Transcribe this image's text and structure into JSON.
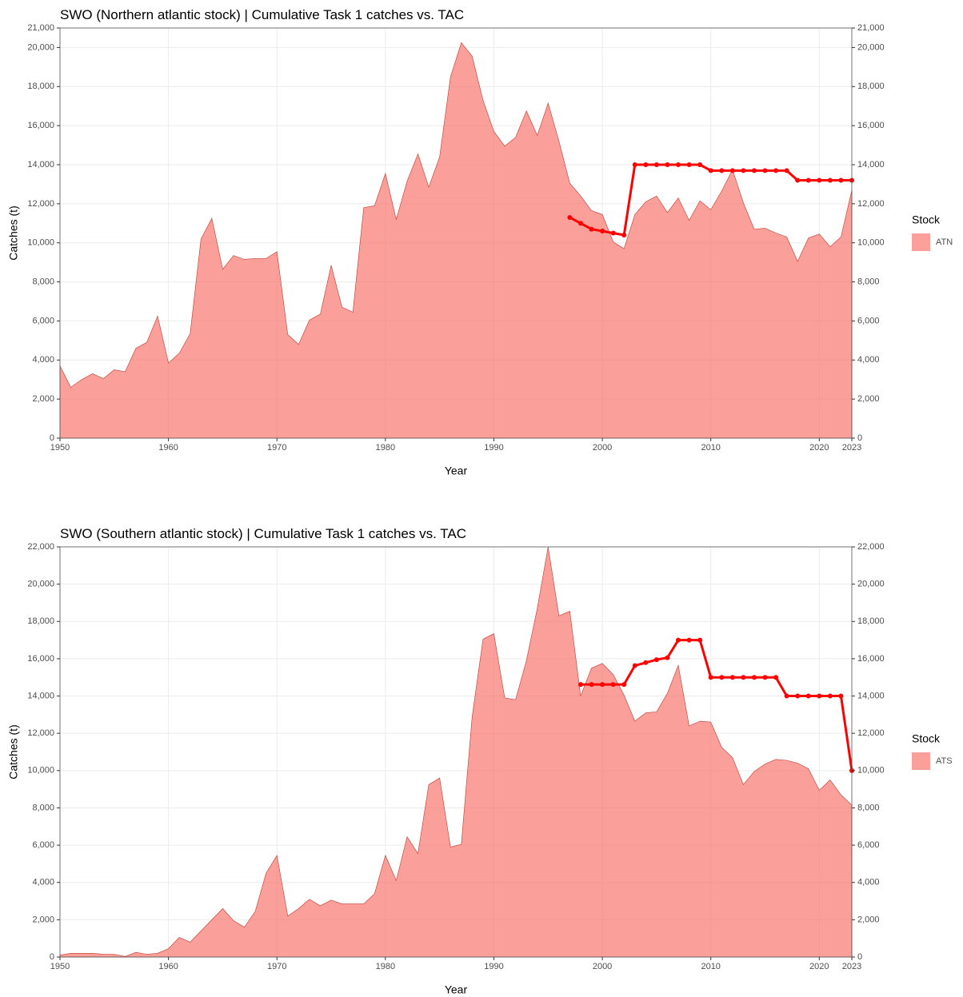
{
  "chart_data": [
    {
      "type": "area",
      "title": "SWO (Northern atlantic stock) | Cumulative Task 1 catches vs. TAC",
      "x_label": "Year",
      "y_label": "Catches (t)",
      "legend_title": "Stock",
      "legend": "right",
      "grid": true,
      "x": [
        1950,
        1951,
        1952,
        1953,
        1954,
        1955,
        1956,
        1957,
        1958,
        1959,
        1960,
        1961,
        1962,
        1963,
        1964,
        1965,
        1966,
        1967,
        1968,
        1969,
        1970,
        1971,
        1972,
        1973,
        1974,
        1975,
        1976,
        1977,
        1978,
        1979,
        1980,
        1981,
        1982,
        1983,
        1984,
        1985,
        1986,
        1987,
        1988,
        1989,
        1990,
        1991,
        1992,
        1993,
        1994,
        1995,
        1996,
        1997,
        1998,
        1999,
        2000,
        2001,
        2002,
        2003,
        2004,
        2005,
        2006,
        2007,
        2008,
        2009,
        2010,
        2011,
        2012,
        2013,
        2014,
        2015,
        2016,
        2017,
        2018,
        2019,
        2020,
        2021,
        2022,
        2023
      ],
      "series": [
        {
          "name": "ATN",
          "type": "area",
          "color": "#F8766D",
          "values": [
            3700,
            2600,
            3000,
            3300,
            3050,
            3500,
            3400,
            4600,
            4900,
            6250,
            3850,
            4350,
            5350,
            10200,
            11250,
            8650,
            9350,
            9150,
            9200,
            9200,
            9550,
            5300,
            4800,
            6050,
            6350,
            8850,
            6700,
            6450,
            11800,
            11900,
            13550,
            11200,
            13150,
            14550,
            12850,
            14400,
            18500,
            20250,
            19550,
            17300,
            15700,
            14950,
            15400,
            16750,
            15500,
            17150,
            15200,
            13050,
            12400,
            11650,
            11450,
            10050,
            9700,
            11450,
            12100,
            12400,
            11550,
            12300,
            11150,
            12150,
            11700,
            12650,
            13750,
            12050,
            10700,
            10750,
            10500,
            10300,
            9050,
            10250,
            10450,
            9800,
            10300,
            12700
          ]
        },
        {
          "type": "line",
          "color": "#FF0000",
          "values": [
            null,
            null,
            null,
            null,
            null,
            null,
            null,
            null,
            null,
            null,
            null,
            null,
            null,
            null,
            null,
            null,
            null,
            null,
            null,
            null,
            null,
            null,
            null,
            null,
            null,
            null,
            null,
            null,
            null,
            null,
            null,
            null,
            null,
            null,
            null,
            null,
            null,
            null,
            null,
            null,
            null,
            null,
            null,
            null,
            null,
            null,
            null,
            11300,
            11000,
            10700,
            10600,
            10500,
            10400,
            14000,
            14000,
            14000,
            14000,
            14000,
            14000,
            14000,
            13700,
            13700,
            13700,
            13700,
            13700,
            13700,
            13700,
            13700,
            13200,
            13200,
            13200,
            13200,
            13200,
            13200
          ]
        }
      ],
      "xlim": [
        1950,
        2023
      ],
      "xticks": [
        1950,
        1960,
        1970,
        1980,
        1990,
        2000,
        2010,
        2020,
        2023
      ],
      "ylim": [
        0,
        21000
      ],
      "yticks": [
        0,
        {
          "value": 2000,
          "label": "2,000"
        },
        {
          "value": 4000,
          "label": "4,000"
        },
        {
          "value": 6000,
          "label": "6,000"
        },
        {
          "value": 8000,
          "label": "8,000"
        },
        {
          "value": 10000,
          "label": "10,000"
        },
        {
          "value": 12000,
          "label": "12,000"
        },
        {
          "value": 14000,
          "label": "14,000"
        },
        {
          "value": 16000,
          "label": "16,000"
        },
        {
          "value": 18000,
          "label": "18,000"
        },
        {
          "value": 20000,
          "label": "20,000"
        },
        {
          "value": 21000,
          "label": "21,000"
        }
      ]
    },
    {
      "type": "area",
      "title": "SWO (Southern atlantic stock) | Cumulative Task 1 catches vs. TAC",
      "x_label": "Year",
      "y_label": "Catches (t)",
      "legend_title": "Stock",
      "legend": "right",
      "grid": true,
      "x": [
        1950,
        1951,
        1952,
        1953,
        1954,
        1955,
        1956,
        1957,
        1958,
        1959,
        1960,
        1961,
        1962,
        1963,
        1964,
        1965,
        1966,
        1967,
        1968,
        1969,
        1970,
        1971,
        1972,
        1973,
        1974,
        1975,
        1976,
        1977,
        1978,
        1979,
        1980,
        1981,
        1982,
        1983,
        1984,
        1985,
        1986,
        1987,
        1988,
        1989,
        1990,
        1991,
        1992,
        1993,
        1994,
        1995,
        1996,
        1997,
        1998,
        1999,
        2000,
        2001,
        2002,
        2003,
        2004,
        2005,
        2006,
        2007,
        2008,
        2009,
        2010,
        2011,
        2012,
        2013,
        2014,
        2015,
        2016,
        2017,
        2018,
        2019,
        2020,
        2021,
        2022,
        2023
      ],
      "series": [
        {
          "name": "ATS",
          "type": "area",
          "color": "#F8766D",
          "values": [
            100,
            200,
            200,
            200,
            150,
            150,
            30,
            250,
            150,
            200,
            450,
            1050,
            800,
            1400,
            2000,
            2600,
            1950,
            1600,
            2450,
            4500,
            5450,
            2200,
            2600,
            3100,
            2750,
            3050,
            2850,
            2850,
            2850,
            3400,
            5450,
            4100,
            6450,
            5550,
            9250,
            9600,
            5900,
            6050,
            12900,
            17050,
            17350,
            13900,
            13800,
            15900,
            18700,
            22000,
            18300,
            18550,
            14000,
            15500,
            15750,
            15150,
            14050,
            12650,
            13100,
            13150,
            14150,
            15650,
            12400,
            12650,
            12600,
            11250,
            10700,
            9250,
            9950,
            10350,
            10600,
            10550,
            10400,
            10100,
            8950,
            9500,
            8700,
            8150
          ]
        },
        {
          "type": "line",
          "color": "#FF0000",
          "values": [
            null,
            null,
            null,
            null,
            null,
            null,
            null,
            null,
            null,
            null,
            null,
            null,
            null,
            null,
            null,
            null,
            null,
            null,
            null,
            null,
            null,
            null,
            null,
            null,
            null,
            null,
            null,
            null,
            null,
            null,
            null,
            null,
            null,
            null,
            null,
            null,
            null,
            null,
            null,
            null,
            null,
            null,
            null,
            null,
            null,
            null,
            null,
            null,
            14620,
            14620,
            14620,
            14620,
            14620,
            15630,
            15790,
            15950,
            16055,
            17000,
            17000,
            17000,
            15000,
            15000,
            15000,
            15000,
            15000,
            15000,
            15000,
            14000,
            14000,
            14000,
            14000,
            14000,
            14000,
            10000
          ]
        }
      ],
      "xlim": [
        1950,
        2023
      ],
      "xticks": [
        1950,
        1960,
        1970,
        1980,
        1990,
        2000,
        2010,
        2020,
        2023
      ],
      "ylim": [
        0,
        22000
      ],
      "yticks": [
        0,
        {
          "value": 2000,
          "label": "2,000"
        },
        {
          "value": 4000,
          "label": "4,000"
        },
        {
          "value": 6000,
          "label": "6,000"
        },
        {
          "value": 8000,
          "label": "8,000"
        },
        {
          "value": 10000,
          "label": "10,000"
        },
        {
          "value": 12000,
          "label": "12,000"
        },
        {
          "value": 14000,
          "label": "14,000"
        },
        {
          "value": 16000,
          "label": "16,000"
        },
        {
          "value": 18000,
          "label": "18,000"
        },
        {
          "value": 20000,
          "label": "20,000"
        },
        {
          "value": 22000,
          "label": "22,000"
        }
      ]
    }
  ]
}
